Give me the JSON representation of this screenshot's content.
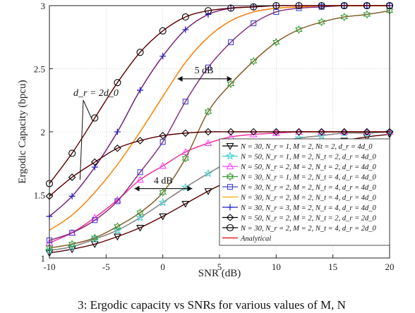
{
  "chart_data": {
    "type": "line",
    "xlabel": "SNR (dB)",
    "ylabel": "Ergodic Capacity (bpcu)",
    "xlim": [
      -10,
      20
    ],
    "ylim": [
      1,
      3
    ],
    "xticks": [
      -10,
      -5,
      0,
      5,
      10,
      15,
      20
    ],
    "xtick_labels": [
      "-10",
      "-5",
      "0",
      "5",
      "10",
      "15",
      "20"
    ],
    "yticks": [
      1,
      1.5,
      2,
      2.5,
      3
    ],
    "ytick_labels": [
      "1",
      "1.5",
      "2",
      "2.5",
      "3"
    ],
    "grid": true,
    "legend_position": "bottom-right",
    "x": [
      -10,
      -8,
      -6,
      -4,
      -2,
      0,
      2,
      4,
      6,
      8,
      10,
      12,
      14,
      16,
      18,
      20
    ],
    "series": [
      {
        "name": "N = 30, N_r = 1, M = 2, Nt = 2, d_r = 4d_0",
        "marker": "tri-down",
        "color": "#000000",
        "values": [
          1.04,
          1.07,
          1.11,
          1.17,
          1.24,
          1.33,
          1.43,
          1.53,
          1.62,
          1.71,
          1.78,
          1.84,
          1.89,
          1.93,
          1.96,
          1.98
        ]
      },
      {
        "name": "N = 50, N_r = 1, M = 2, N_t = 2, d_r = 4d_0",
        "marker": "star",
        "color": "#33cccc",
        "values": [
          1.06,
          1.09,
          1.15,
          1.22,
          1.32,
          1.44,
          1.56,
          1.67,
          1.77,
          1.85,
          1.91,
          1.95,
          1.97,
          1.99,
          1.99,
          2.0
        ]
      },
      {
        "name": "N = 50, N_r = 2, M = 2, N_t = 2, d_r = 4d_0",
        "marker": "tri-up",
        "color": "#ff44ff",
        "values": [
          1.12,
          1.2,
          1.32,
          1.46,
          1.62,
          1.73,
          1.84,
          1.91,
          1.96,
          1.98,
          1.99,
          2.0,
          2.0,
          2.0,
          2.0,
          2.0
        ]
      },
      {
        "name": "N = 30, N_r = 1, M = 2, N_t = 4, d_r = 4d_0",
        "marker": "hexagram",
        "color": "#339933",
        "values": [
          1.08,
          1.11,
          1.16,
          1.25,
          1.36,
          1.52,
          1.79,
          2.16,
          2.38,
          2.56,
          2.71,
          2.81,
          2.87,
          2.91,
          2.93,
          2.96
        ]
      },
      {
        "name": "N = 30, N_r = 2, M = 2, N_t = 4, d_r = 4d_0",
        "marker": "square",
        "color": "#4444cc",
        "values": [
          1.14,
          1.2,
          1.3,
          1.45,
          1.68,
          1.92,
          2.24,
          2.51,
          2.71,
          2.86,
          2.95,
          2.98,
          2.99,
          3.0,
          3.0,
          3.0
        ]
      },
      {
        "name": "N = 30, N_r = 2, M = 2, N_t = 4, d_r = 4d_0",
        "marker": "none",
        "color": "#ffaa00",
        "values": [
          1.22,
          1.34,
          1.52,
          1.74,
          2.0,
          2.28,
          2.55,
          2.75,
          2.88,
          2.95,
          2.98,
          2.99,
          3.0,
          3.0,
          3.0,
          3.0
        ]
      },
      {
        "name": "N = 30, N_r = 3, M = 2, N_t = 4, d_r = 4d_0",
        "marker": "plus",
        "color": "#2222cc",
        "values": [
          1.33,
          1.49,
          1.72,
          2.0,
          2.33,
          2.6,
          2.81,
          2.93,
          2.98,
          2.99,
          3.0,
          3.0,
          3.0,
          3.0,
          3.0,
          3.0
        ]
      },
      {
        "name": "N = 50, N_r = 2, M = 2, N_t = 2, d_r = 2d_0",
        "marker": "diamond",
        "color": "#000000",
        "values": [
          1.49,
          1.64,
          1.76,
          1.87,
          1.93,
          1.97,
          1.99,
          2.0,
          2.0,
          2.0,
          2.0,
          2.0,
          2.0,
          2.0,
          2.0,
          2.0
        ]
      },
      {
        "name": "N = 30, N_r = 2, M = 2, N_t = 4, d_r = 2d_0",
        "marker": "circle",
        "color": "#000000",
        "values": [
          1.59,
          1.83,
          2.11,
          2.39,
          2.63,
          2.8,
          2.91,
          2.96,
          2.98,
          2.99,
          3.0,
          3.0,
          3.0,
          3.0,
          3.0,
          3.0
        ]
      }
    ],
    "analytical": {
      "name": "Analytical",
      "color": "#dd0000"
    },
    "annotations": [
      {
        "text": "d_r = 2d_0"
      },
      {
        "text": "5 dB"
      },
      {
        "text": "4 dB"
      }
    ]
  },
  "caption_fragment": "3: Ergodic capacity vs SNRs for various values of M, N"
}
